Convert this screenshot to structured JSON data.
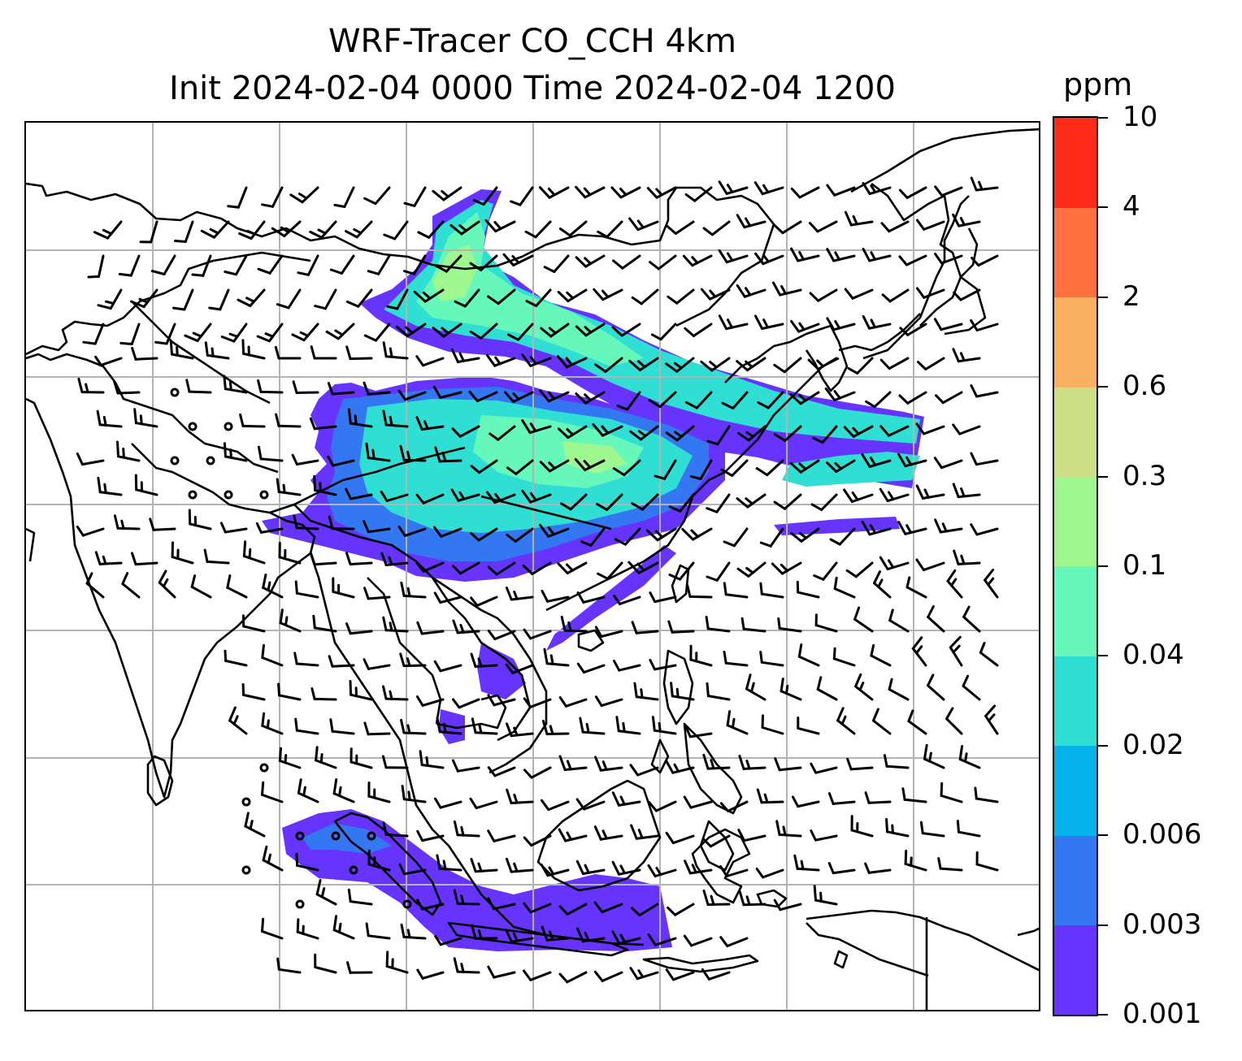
{
  "title_line1": "WRF-Tracer CO_CCH 4km",
  "title_line2": "Init 2024-02-04 0000 Time 2024-02-04 1200",
  "colorbar": {
    "unit": "ppm",
    "tick_labels": [
      "0.001",
      "0.003",
      "0.006",
      "0.02",
      "0.04",
      "0.1",
      "0.3",
      "0.6",
      "2",
      "4",
      "10"
    ],
    "colors": [
      "#6633ff",
      "#3377f3",
      "#05b2ec",
      "#30dfd3",
      "#66f8ba",
      "#9ef78f",
      "#cede84",
      "#fbaf61",
      "#ff7040",
      "#ff2a18"
    ]
  },
  "map": {
    "gridlines": true,
    "features": [
      "coastlines",
      "country borders",
      "CO tracer concentration (filled contours)",
      "wind barbs"
    ]
  }
}
